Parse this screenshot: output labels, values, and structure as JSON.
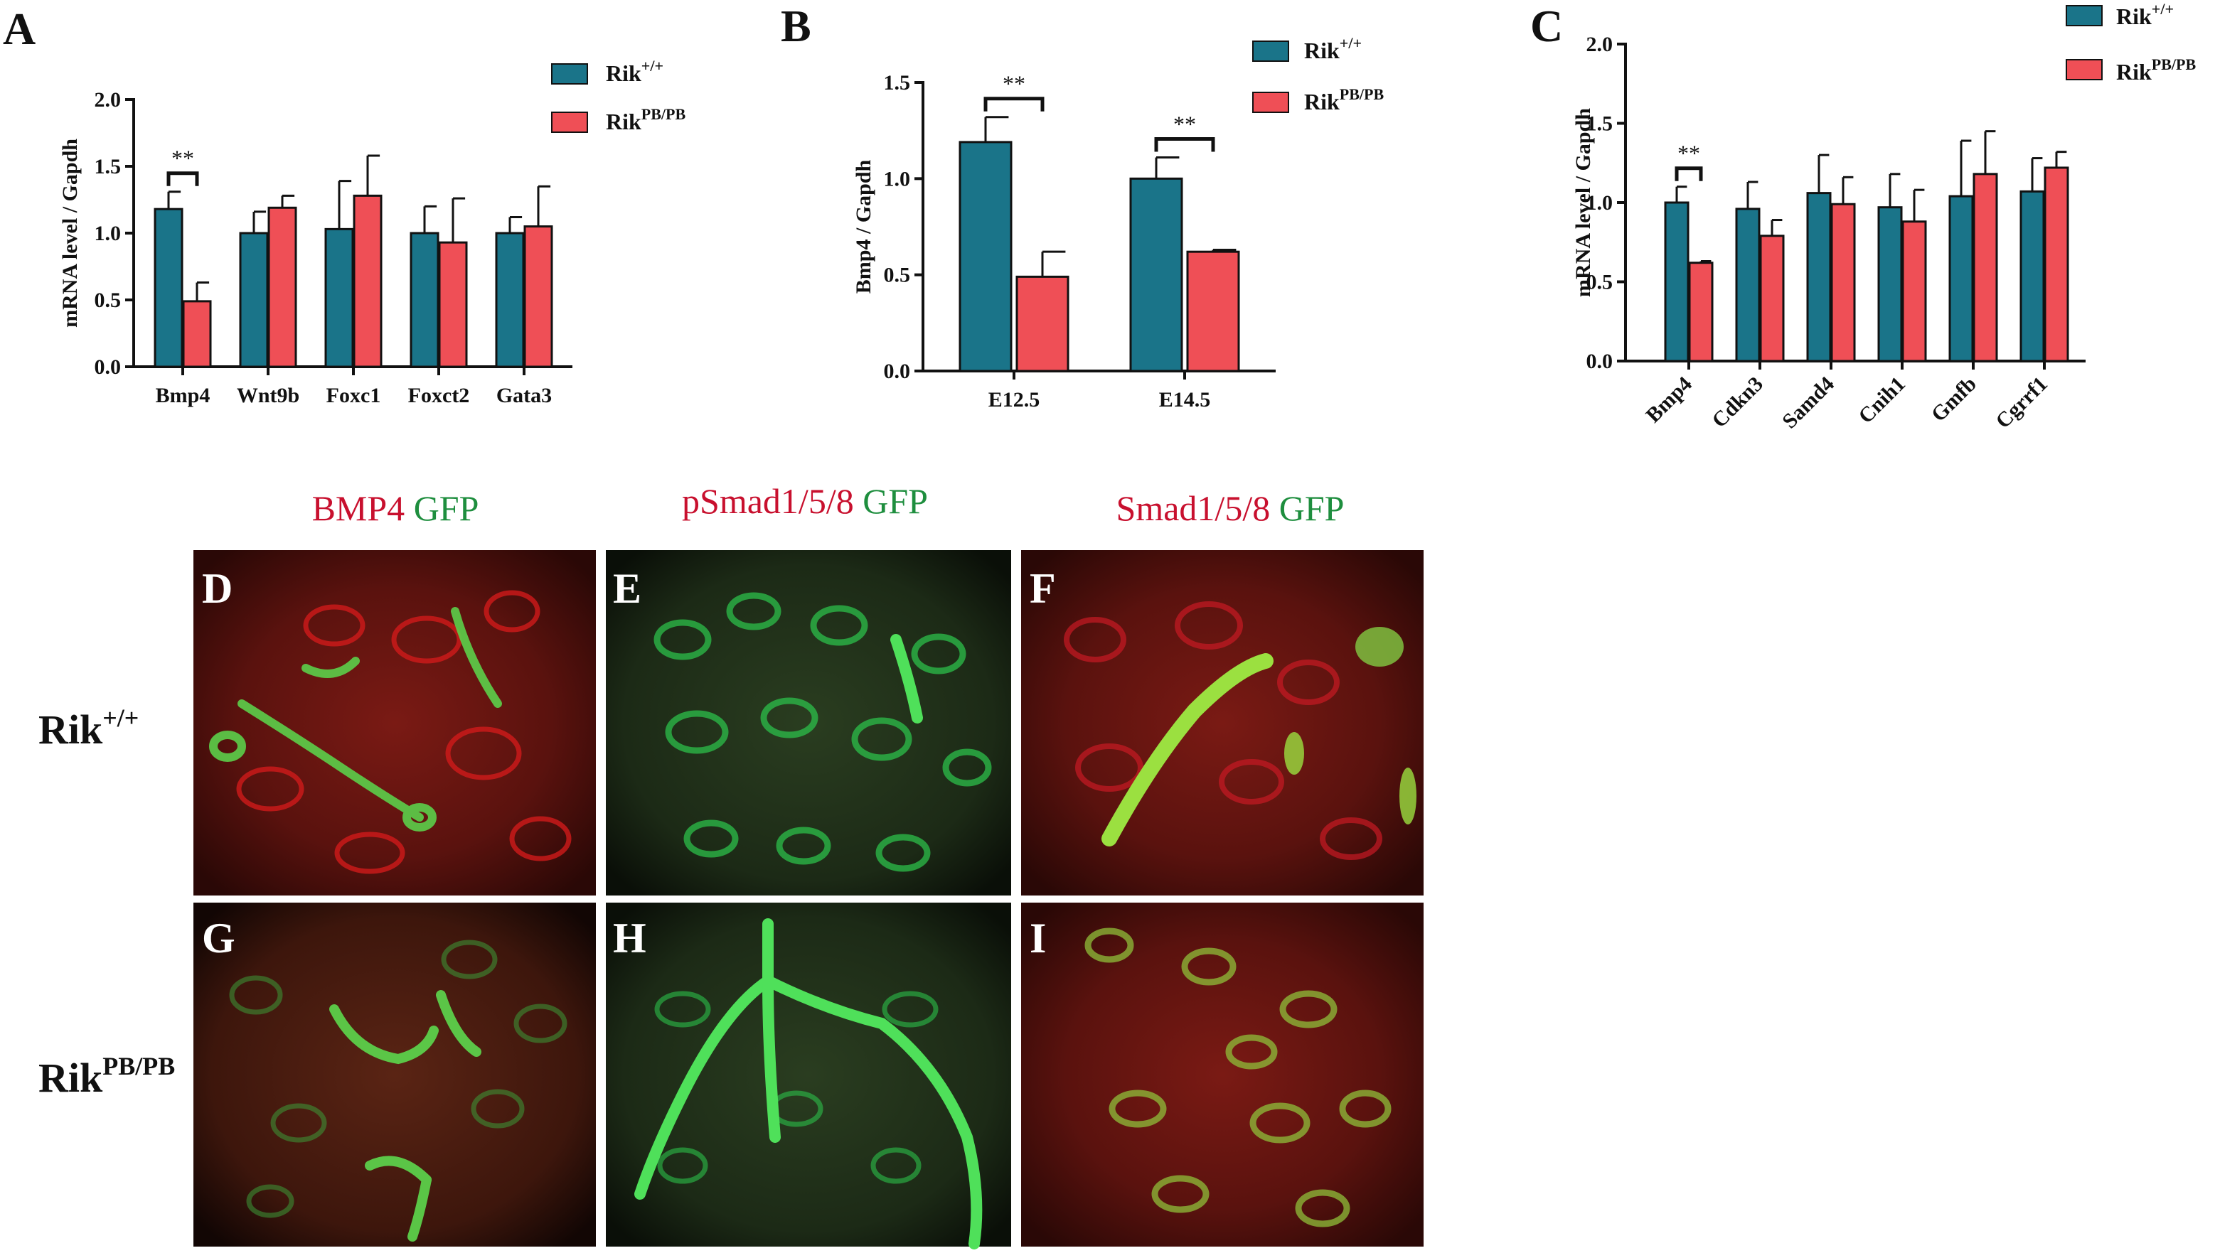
{
  "colors": {
    "rik_wt": "#1a7489",
    "rik_pb": "#ef4f56",
    "stain_red": "#c8102e",
    "stain_green": "#1e8e3e"
  },
  "legend": [
    {
      "base": "Rik",
      "sup": "+/+"
    },
    {
      "base": "Rik",
      "sup": "PB/PB"
    }
  ],
  "significance": "**",
  "chart_data": [
    {
      "panel": "A",
      "type": "bar",
      "ylabel": "mRNA level / Gapdh",
      "ylim": [
        0,
        2.0
      ],
      "yticks": [
        "0.0",
        "0.5",
        "1.0",
        "1.5",
        "2.0"
      ],
      "categories": [
        "Bmp4",
        "Wnt9b",
        "Foxc1",
        "Foxct2",
        "Gata3"
      ],
      "series": [
        {
          "name": "Rik+/+",
          "values": [
            1.18,
            1.0,
            1.03,
            1.0,
            1.0
          ],
          "errors": [
            0.13,
            0.16,
            0.36,
            0.2,
            0.12
          ]
        },
        {
          "name": "RikPB/PB",
          "values": [
            0.49,
            1.19,
            1.28,
            0.93,
            1.05
          ],
          "errors": [
            0.14,
            0.09,
            0.3,
            0.33,
            0.3
          ]
        }
      ],
      "significant": [
        "Bmp4"
      ]
    },
    {
      "panel": "B",
      "type": "bar",
      "ylabel": "Bmp4 / Gapdh",
      "ylim": [
        0,
        1.5
      ],
      "yticks": [
        "0.0",
        "0.5",
        "1.0",
        "1.5"
      ],
      "categories": [
        "E12.5",
        "E14.5"
      ],
      "series": [
        {
          "name": "Rik+/+",
          "values": [
            1.19,
            1.0
          ],
          "errors": [
            0.13,
            0.11
          ]
        },
        {
          "name": "RikPB/PB",
          "values": [
            0.49,
            0.62
          ],
          "errors": [
            0.13,
            0.01
          ]
        }
      ],
      "significant": [
        "E12.5",
        "E14.5"
      ]
    },
    {
      "panel": "C",
      "type": "bar",
      "ylabel": "mRNA level / Gapdh",
      "ylim": [
        0,
        2.0
      ],
      "yticks": [
        "0.0",
        "0.5",
        "1.0",
        "1.5",
        "2.0"
      ],
      "categories": [
        "Bmp4",
        "Cdkn3",
        "Samd4",
        "Cnih1",
        "Gmfb",
        "Cgrrf1"
      ],
      "series": [
        {
          "name": "Rik+/+",
          "values": [
            1.0,
            0.96,
            1.06,
            0.97,
            1.04,
            1.07
          ],
          "errors": [
            0.1,
            0.17,
            0.24,
            0.21,
            0.35,
            0.21
          ]
        },
        {
          "name": "RikPB/PB",
          "values": [
            0.62,
            0.79,
            0.99,
            0.88,
            1.18,
            1.22
          ],
          "errors": [
            0.01,
            0.1,
            0.17,
            0.2,
            0.27,
            0.1
          ]
        }
      ],
      "significant": [
        "Bmp4"
      ]
    }
  ],
  "stain_headers": [
    {
      "red": "BMP4",
      "green": "GFP"
    },
    {
      "red": "pSmad1/5/8",
      "green": "GFP"
    },
    {
      "red": "Smad1/5/8",
      "green": "GFP"
    }
  ],
  "row_labels": [
    {
      "base": "Rik",
      "sup": "+/+"
    },
    {
      "base": "Rik",
      "sup": "PB/PB"
    }
  ],
  "image_letters": [
    "D",
    "E",
    "F",
    "G",
    "H",
    "I"
  ]
}
